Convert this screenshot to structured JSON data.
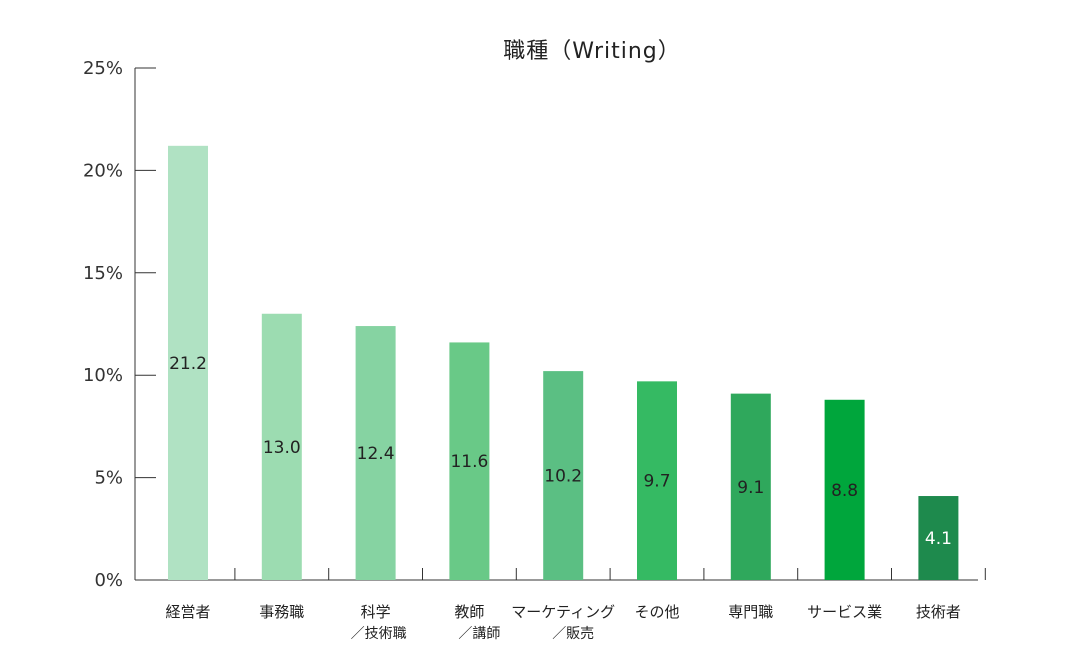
{
  "chart_data": {
    "type": "bar",
    "title": "職種（Writing）",
    "xlabel": "",
    "ylabel": "",
    "ylim": [
      0,
      25
    ],
    "yticks": [
      "0%",
      "5%",
      "10%",
      "15%",
      "20%",
      "25%"
    ],
    "ytick_values": [
      0,
      5,
      10,
      15,
      20,
      25
    ],
    "grid": false,
    "legend": "none",
    "categories": [
      [
        "経営者"
      ],
      [
        "事務職"
      ],
      [
        "科学",
        "／技術職"
      ],
      [
        "教師",
        "／講師"
      ],
      [
        "マーケティング",
        "／販売"
      ],
      [
        "その他"
      ],
      [
        "専門職"
      ],
      [
        "サービス業"
      ],
      [
        "技術者"
      ]
    ],
    "values": [
      21.2,
      13.0,
      12.4,
      11.6,
      10.2,
      9.7,
      9.1,
      8.8,
      4.1
    ],
    "data_labels": [
      "21.2",
      "13.0",
      "12.4",
      "11.6",
      "10.2",
      "9.7",
      "9.1",
      "8.8",
      "4.1"
    ],
    "colors": [
      "#b0e2c3",
      "#9cdcb1",
      "#86d3a2",
      "#69c987",
      "#5bbf83",
      "#35ba63",
      "#2fa85c",
      "#00a63c",
      "#1e8a4d"
    ],
    "data_label_colors": [
      "#222222",
      "#222222",
      "#222222",
      "#222222",
      "#222222",
      "#222222",
      "#222222",
      "#222222",
      "#ffffff"
    ]
  }
}
